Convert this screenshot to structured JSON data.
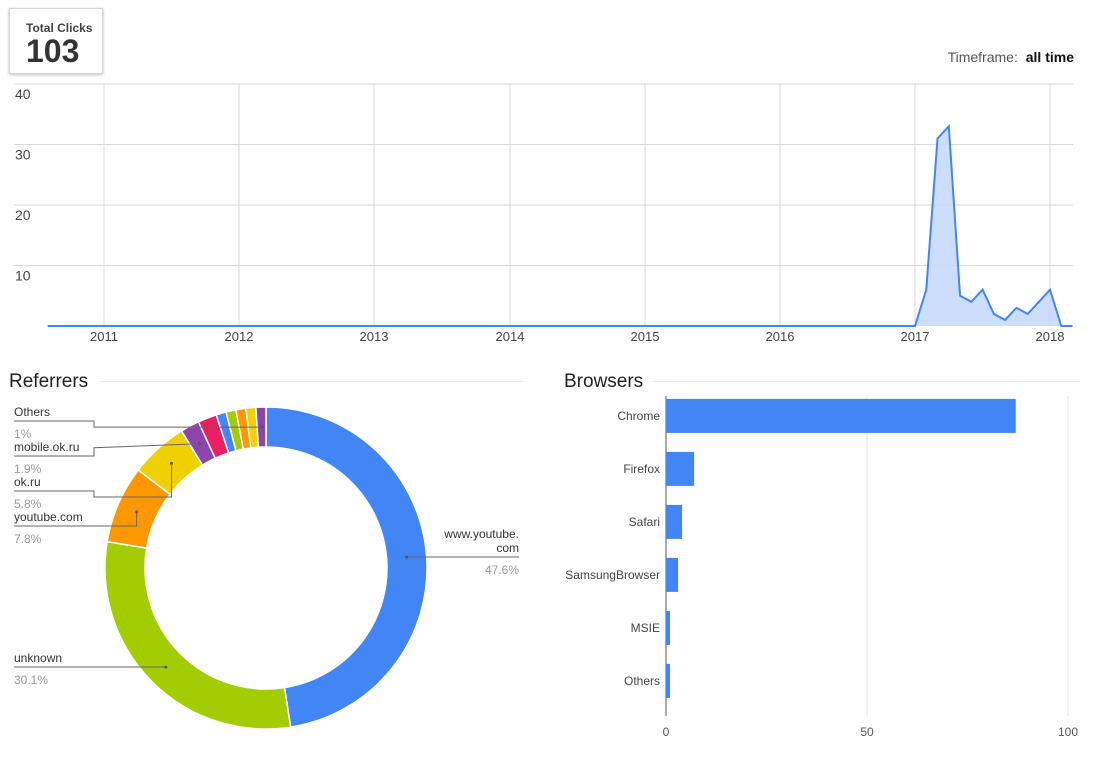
{
  "summary": {
    "total_label": "Total Clicks",
    "total_value": "103",
    "timeframe_label": "Timeframe:",
    "timeframe_value": "all time"
  },
  "colors": {
    "line": "#4285f4",
    "area_fill": "#c6dafc",
    "grid": "#d9d9d9",
    "bar": "#4285f4"
  },
  "chart_data": [
    {
      "type": "area",
      "title": "",
      "x_tick_labels": [
        "2011",
        "2012",
        "2013",
        "2014",
        "2015",
        "2016",
        "2017",
        "2018"
      ],
      "y_tick_labels": [
        "40",
        "30",
        "20",
        "10"
      ],
      "ylim": [
        0,
        40
      ],
      "series": [
        {
          "x": [
            "2010-08",
            "2011-01",
            "2016-12",
            "2017-01",
            "2017-02",
            "2017-03",
            "2017-04",
            "2017-05",
            "2017-06",
            "2017-07",
            "2017-08",
            "2017-09",
            "2017-10",
            "2017-11",
            "2017-12",
            "2018-01",
            "2018-02",
            "2018-03"
          ],
          "values": [
            0,
            0,
            0,
            0,
            6,
            31,
            33,
            5,
            4,
            6,
            2,
            1,
            3,
            2,
            4,
            6,
            0,
            0
          ]
        }
      ],
      "grid": true
    },
    {
      "type": "pie",
      "title": "Referrers",
      "slices": [
        {
          "label": "www.youtube.com",
          "label_lines": [
            "www.youtube.",
            "com"
          ],
          "value": 47.6,
          "percent_label": "47.6%",
          "color": "#4285f4",
          "labeled": true
        },
        {
          "label": "unknown",
          "value": 30.1,
          "percent_label": "30.1%",
          "color": "#a3cd00",
          "labeled": true
        },
        {
          "label": "youtube.com",
          "value": 7.8,
          "percent_label": "7.8%",
          "color": "#ff9800",
          "labeled": true
        },
        {
          "label": "ok.ru",
          "value": 5.8,
          "percent_label": "5.8%",
          "color": "#f0d000",
          "labeled": true
        },
        {
          "label": "mobile.ok.ru",
          "value": 1.9,
          "percent_label": "1.9%",
          "color": "#8e44ad",
          "labeled": true
        },
        {
          "label": "",
          "value": 1.9,
          "color": "#e91e63",
          "labeled": false
        },
        {
          "label": "",
          "value": 1.0,
          "color": "#4285f4",
          "labeled": false
        },
        {
          "label": "",
          "value": 1.0,
          "color": "#a3cd00",
          "labeled": false
        },
        {
          "label": "",
          "value": 1.0,
          "color": "#ff9800",
          "labeled": false
        },
        {
          "label": "",
          "value": 1.0,
          "color": "#f0d000",
          "labeled": false
        },
        {
          "label": "Others",
          "value": 1.0,
          "percent_label": "1%",
          "color": "#8e44ad",
          "labeled": true
        }
      ]
    },
    {
      "type": "bar",
      "orientation": "horizontal",
      "title": "Browsers",
      "categories": [
        "Chrome",
        "Firefox",
        "Safari",
        "SamsungBrowser",
        "MSIE",
        "Others"
      ],
      "values": [
        87,
        7,
        4,
        3,
        1,
        1
      ],
      "xlim": [
        0,
        100
      ],
      "x_tick_labels": [
        "0",
        "50",
        "100"
      ]
    }
  ]
}
